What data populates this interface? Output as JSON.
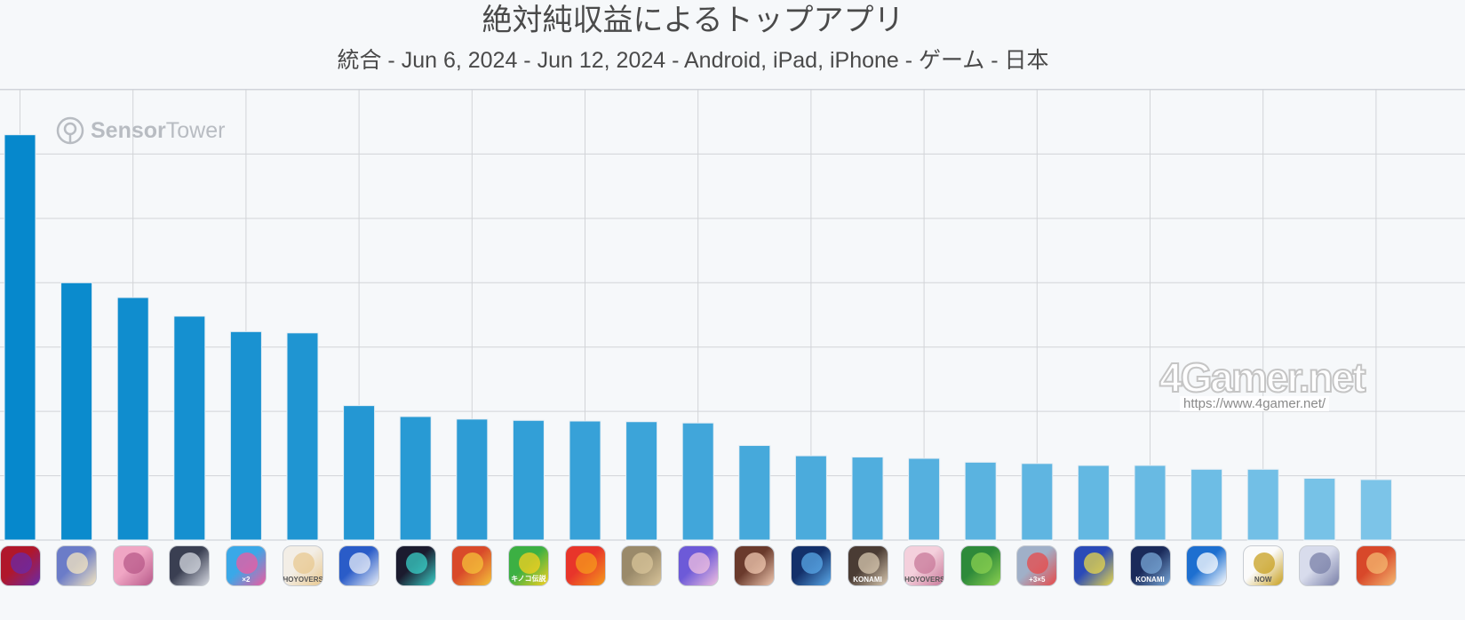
{
  "header": {
    "title": "絶対純収益によるトップアプリ",
    "subtitle": "統合 - Jun 6, 2024 - Jun 12, 2024 - Android, iPad, iPhone - ゲーム - 日本"
  },
  "watermarks": {
    "sensor_strong": "Sensor",
    "sensor_light": "Tower",
    "site": "4Gamer.net",
    "url": "https://www.4gamer.net/"
  },
  "chart_data": {
    "type": "bar",
    "title": "絶対純収益によるトップアプリ",
    "subtitle": "統合 - Jun 6, 2024 - Jun 12, 2024 - Android, iPad, iPhone - ゲーム - 日本",
    "xlabel": "",
    "ylabel": "",
    "grid": true,
    "legend": "none",
    "ylim": [
      0,
      7
    ],
    "values": [
      6.3,
      4.0,
      3.77,
      3.48,
      3.24,
      3.22,
      2.09,
      1.92,
      1.88,
      1.86,
      1.85,
      1.84,
      1.82,
      1.47,
      1.31,
      1.29,
      1.27,
      1.21,
      1.19,
      1.16,
      1.16,
      1.1,
      1.1,
      0.96,
      0.94
    ],
    "colors": {
      "start": "#0688cc",
      "end": "#7cc4e8",
      "grid": "#d2d4d8",
      "bar_edge": "#e6eef4"
    }
  },
  "apps": [
    {
      "icon": "dragon-game-icon",
      "bg": "#b0172b",
      "fg": "#6a2aa8",
      "label": ""
    },
    {
      "icon": "anime-knight-game-icon",
      "bg": "#6b7cc8",
      "fg": "#f4e6c0",
      "label": ""
    },
    {
      "icon": "pink-idol-game-icon",
      "bg": "#f0a6c4",
      "fg": "#b85a8a",
      "label": ""
    },
    {
      "icon": "dark-hair-character-icon",
      "bg": "#3a3f52",
      "fg": "#d6d9e2",
      "label": ""
    },
    {
      "icon": "blue-puzzle-game-icon",
      "bg": "#3aa8e8",
      "fg": "#f05aa0",
      "label": "×2"
    },
    {
      "icon": "white-hair-character-icon",
      "bg": "#f3eee6",
      "fg": "#e8c890",
      "label": "HOYOVERSE"
    },
    {
      "icon": "silver-hair-character-icon",
      "bg": "#2a5cc8",
      "fg": "#e8eef8",
      "label": ""
    },
    {
      "icon": "neon-character-icon",
      "bg": "#1b1b2e",
      "fg": "#3ad0c8",
      "label": ""
    },
    {
      "icon": "king-character-icon",
      "bg": "#d94a2a",
      "fg": "#f4c23a",
      "label": ""
    },
    {
      "icon": "green-mushroom-game-icon",
      "bg": "#3cb043",
      "fg": "#f5d020",
      "label": "キノコ伝説"
    },
    {
      "icon": "red-monster-icon",
      "bg": "#e8352a",
      "fg": "#f59a1c",
      "label": ""
    },
    {
      "icon": "soldier-battle-icon",
      "bg": "#9a8a6a",
      "fg": "#d8c49a",
      "label": ""
    },
    {
      "icon": "horse-girl-character-icon",
      "bg": "#6d5ad8",
      "fg": "#f0c0e0",
      "label": ""
    },
    {
      "icon": "brown-hair-character-icon",
      "bg": "#6a3a2c",
      "fg": "#f0c8b0",
      "label": ""
    },
    {
      "icon": "blue-planet-icon",
      "bg": "#13306a",
      "fg": "#5aa8e8",
      "label": ""
    },
    {
      "icon": "baseball-team-icon",
      "bg": "#4a3c34",
      "fg": "#d8c8b0",
      "label": "KONAMI"
    },
    {
      "icon": "pink-hair-character-icon",
      "bg": "#f4d0dc",
      "fg": "#c87a9a",
      "label": "HOYOVERSE"
    },
    {
      "icon": "tsum-puzzle-icon",
      "bg": "#2e8a3a",
      "fg": "#8ad050",
      "label": ""
    },
    {
      "icon": "math-animal-icon",
      "bg": "#a0b0c8",
      "fg": "#e84a4a",
      "label": "+3×5"
    },
    {
      "icon": "soccer-players-icon",
      "bg": "#2a4ab8",
      "fg": "#e8d84a",
      "label": ""
    },
    {
      "icon": "dragon-card-icon",
      "bg": "#1a2a5a",
      "fg": "#7aa8d8",
      "label": "KONAMI"
    },
    {
      "icon": "pokeball-icon",
      "bg": "#1d6fd0",
      "fg": "#ffffff",
      "label": ""
    },
    {
      "icon": "now-logo-icon",
      "bg": "#fbfbfb",
      "fg": "#c8a020",
      "label": "NOW"
    },
    {
      "icon": "silver-hair-girl-icon",
      "bg": "#d8dcec",
      "fg": "#7a80a8",
      "label": ""
    },
    {
      "icon": "red-hair-character-icon",
      "bg": "#d8482a",
      "fg": "#f4b870",
      "label": ""
    }
  ]
}
